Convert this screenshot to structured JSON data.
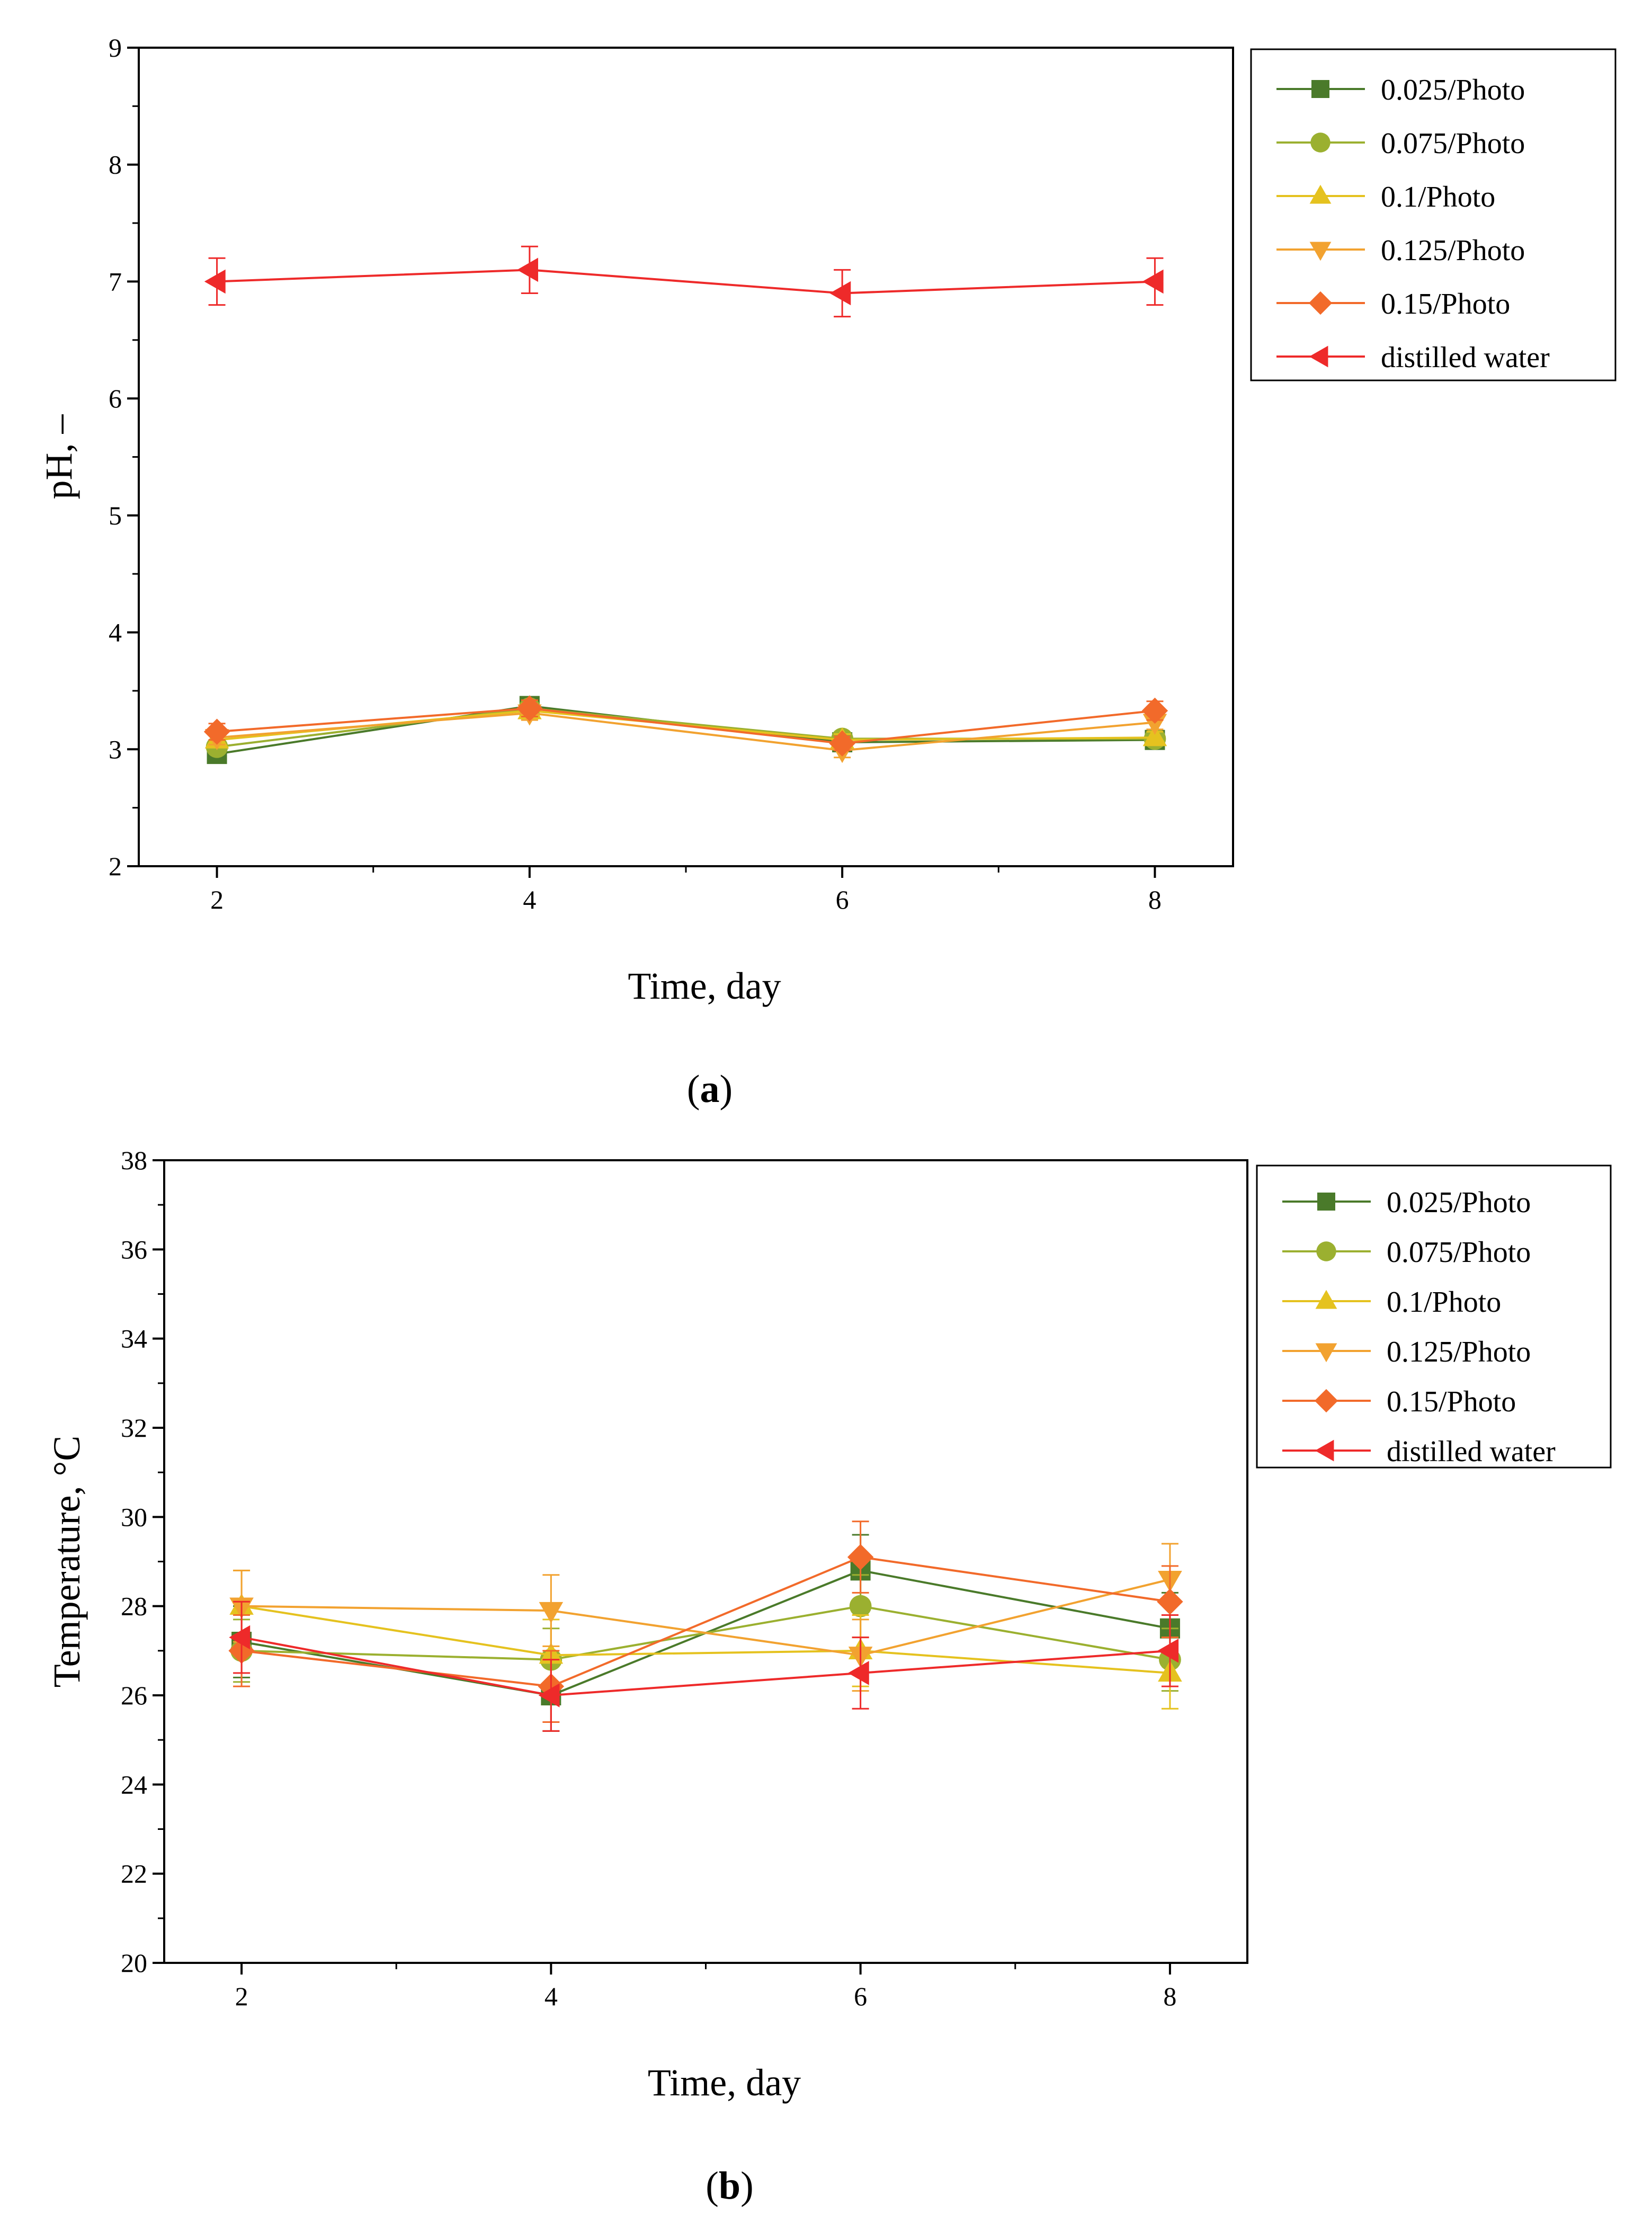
{
  "chart_data": [
    {
      "type": "line",
      "caption": {
        "prefix": "(",
        "letter": "a",
        "suffix": ")"
      },
      "xlabel": "Time, day",
      "ylabel": "pH, –",
      "x": [
        2,
        4,
        6,
        8
      ],
      "xlim": [
        1.5,
        8.5
      ],
      "ylim": [
        2,
        9
      ],
      "xticks": [
        "2",
        "4",
        "6",
        "8"
      ],
      "yticks": [
        "2",
        "3",
        "4",
        "5",
        "6",
        "7",
        "8",
        "9"
      ],
      "legend_position": "right",
      "series": [
        {
          "name": "0.025/Photo",
          "marker": "square",
          "color": "#4a7a2a",
          "values": [
            2.96,
            3.37,
            3.06,
            3.08
          ],
          "errors": [
            0.05,
            0.06,
            0.05,
            0.05
          ]
        },
        {
          "name": "0.075/Photo",
          "marker": "circle",
          "color": "#9bb030",
          "values": [
            3.02,
            3.35,
            3.09,
            3.09
          ],
          "errors": [
            0.05,
            0.06,
            0.05,
            0.05
          ]
        },
        {
          "name": "0.1/Photo",
          "marker": "triangle-up",
          "color": "#e5c21f",
          "values": [
            3.08,
            3.33,
            3.08,
            3.1
          ],
          "errors": [
            0.05,
            0.06,
            0.05,
            0.05
          ]
        },
        {
          "name": "0.125/Photo",
          "marker": "triangle-down",
          "color": "#f2a230",
          "values": [
            3.1,
            3.31,
            2.99,
            3.23
          ],
          "errors": [
            0.06,
            0.06,
            0.06,
            0.06
          ]
        },
        {
          "name": "0.15/Photo",
          "marker": "diamond",
          "color": "#f26a2a",
          "values": [
            3.15,
            3.35,
            3.05,
            3.33
          ],
          "errors": [
            0.07,
            0.07,
            0.06,
            0.08
          ]
        },
        {
          "name": "distilled water",
          "marker": "triangle-left",
          "color": "#ee2a2a",
          "values": [
            7.0,
            7.1,
            6.9,
            7.0
          ],
          "errors": [
            0.2,
            0.2,
            0.2,
            0.2
          ]
        }
      ]
    },
    {
      "type": "line",
      "caption": {
        "prefix": "(",
        "letter": "b",
        "suffix": ")"
      },
      "xlabel": "Time, day",
      "ylabel": "Temperature, °C",
      "x": [
        2,
        4,
        6,
        8
      ],
      "xlim": [
        1.5,
        8.5
      ],
      "ylim": [
        20,
        38
      ],
      "xticks": [
        "2",
        "4",
        "6",
        "8"
      ],
      "yticks": [
        "20",
        "22",
        "24",
        "26",
        "28",
        "30",
        "32",
        "34",
        "36",
        "38"
      ],
      "legend_position": "right",
      "series": [
        {
          "name": "0.025/Photo",
          "marker": "square",
          "color": "#4a7a2a",
          "values": [
            27.2,
            26.0,
            28.8,
            27.5
          ],
          "errors": [
            0.8,
            0.8,
            0.8,
            0.8
          ]
        },
        {
          "name": "0.075/Photo",
          "marker": "circle",
          "color": "#9bb030",
          "values": [
            27.0,
            26.8,
            28.0,
            26.8
          ],
          "errors": [
            0.7,
            0.7,
            0.7,
            0.7
          ]
        },
        {
          "name": "0.1/Photo",
          "marker": "triangle-up",
          "color": "#e5c21f",
          "values": [
            28.0,
            26.9,
            27.0,
            26.5
          ],
          "errors": [
            0.8,
            0.8,
            0.8,
            0.8
          ]
        },
        {
          "name": "0.125/Photo",
          "marker": "triangle-down",
          "color": "#f2a230",
          "values": [
            28.0,
            27.9,
            26.9,
            28.6
          ],
          "errors": [
            0.8,
            0.8,
            0.8,
            0.8
          ]
        },
        {
          "name": "0.15/Photo",
          "marker": "diamond",
          "color": "#f26a2a",
          "values": [
            27.0,
            26.2,
            29.1,
            28.1
          ],
          "errors": [
            0.8,
            0.8,
            0.8,
            0.8
          ]
        },
        {
          "name": "distilled water",
          "marker": "triangle-left",
          "color": "#ee2a2a",
          "values": [
            27.3,
            26.0,
            26.5,
            27.0
          ],
          "errors": [
            0.8,
            0.8,
            0.8,
            0.8
          ]
        }
      ]
    }
  ]
}
